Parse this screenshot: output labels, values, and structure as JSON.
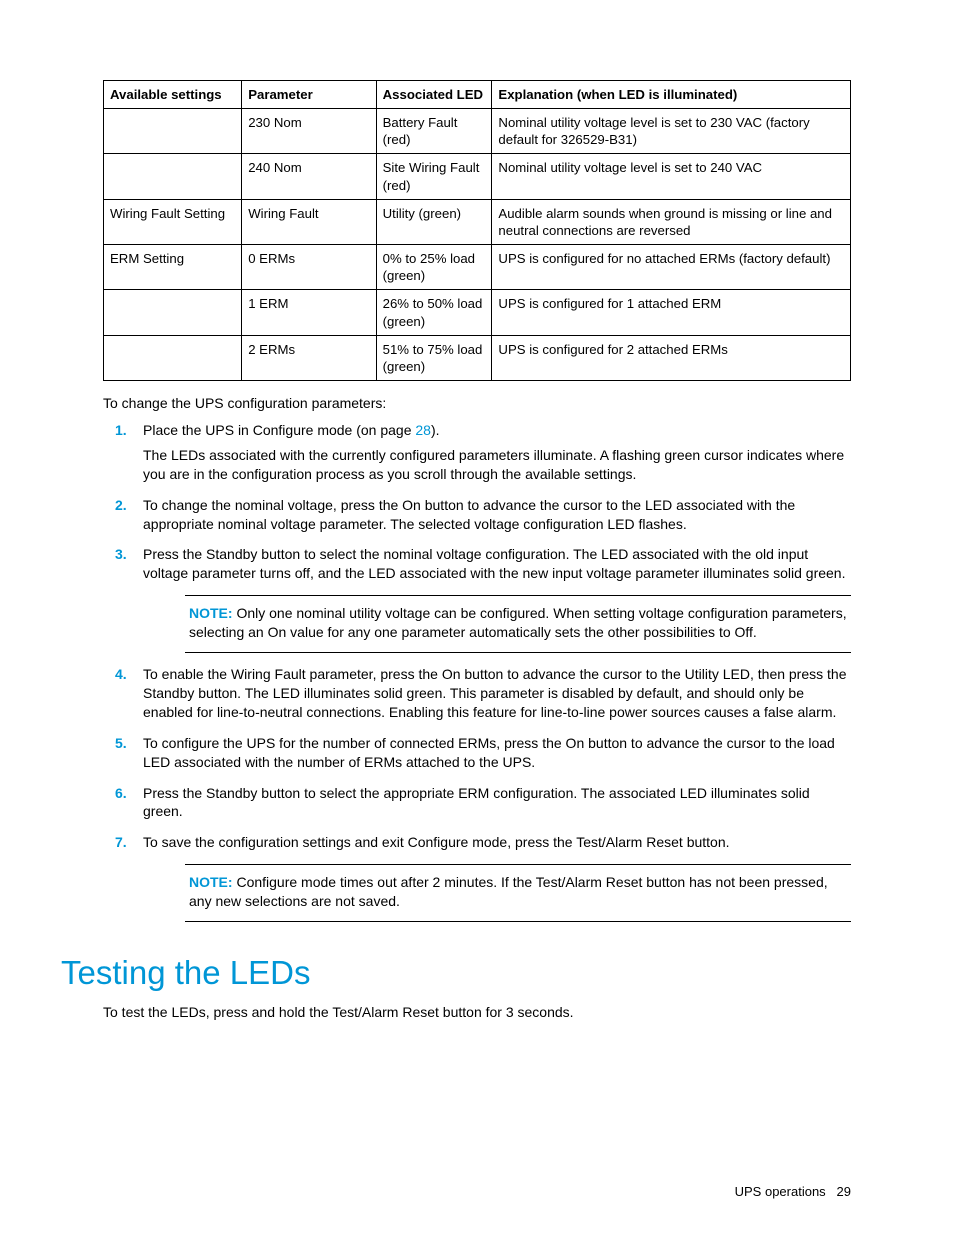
{
  "table": {
    "headers": {
      "a": "Available settings",
      "b": "Parameter",
      "c": "Associated LED",
      "d": "Explanation (when LED is illuminated)"
    },
    "rows": [
      {
        "a": "",
        "b": "230 Nom",
        "c": "Battery Fault (red)",
        "d": "Nominal utility voltage level is set to 230 VAC (factory default for 326529-B31)"
      },
      {
        "a": "",
        "b": "240 Nom",
        "c": "Site Wiring Fault (red)",
        "d": "Nominal utility voltage level is set to 240 VAC"
      },
      {
        "a": "Wiring Fault Setting",
        "b": "Wiring Fault",
        "c": "Utility (green)",
        "d": "Audible alarm sounds when ground is missing or line and neutral connections are reversed"
      },
      {
        "a": "ERM Setting",
        "b": "0 ERMs",
        "c": "0% to 25% load (green)",
        "d": "UPS is configured for no attached ERMs (factory default)"
      },
      {
        "a": "",
        "b": "1 ERM",
        "c": "26% to 50% load (green)",
        "d": "UPS is configured for 1 attached ERM"
      },
      {
        "a": "",
        "b": "2 ERMs",
        "c": "51% to 75% load (green)",
        "d": "UPS is configured for 2 attached ERMs"
      }
    ]
  },
  "intro": "To change the UPS configuration parameters:",
  "steps": {
    "s1a_pre": "Place the UPS in Configure mode (on page ",
    "s1a_link": "28",
    "s1a_post": ").",
    "s1b": "The LEDs associated with the currently configured parameters illuminate. A flashing green cursor indicates where you are in the configuration process as you scroll through the available settings.",
    "s2": "To change the nominal voltage, press the On button to advance the cursor to the LED associated with the appropriate nominal voltage parameter. The selected voltage configuration LED flashes.",
    "s3": "Press the Standby button to select the nominal voltage configuration. The LED associated with the old input voltage parameter turns off, and the LED associated with the new input voltage parameter illuminates solid green.",
    "s4": "To enable the Wiring Fault parameter, press the On button to advance the cursor to the Utility LED, then press the Standby button. The LED illuminates solid green. This parameter is disabled by default, and should only be enabled for line-to-neutral connections. Enabling this feature for line-to-line power sources causes a false alarm.",
    "s5": "To configure the UPS for the number of connected ERMs, press the On button to advance the cursor to the load LED associated with the number of ERMs attached to the UPS.",
    "s6": "Press the Standby button to select the appropriate ERM configuration. The associated LED illuminates solid green.",
    "s7": "To save the configuration settings and exit Configure mode, press the Test/Alarm Reset button."
  },
  "notes": {
    "label": "NOTE:",
    "n1": " Only one nominal utility voltage can be configured. When setting voltage configuration parameters, selecting an On value for any one parameter automatically sets the other possibilities to Off.",
    "n2": " Configure mode times out after 2 minutes. If the Test/Alarm Reset button has not been pressed, any new selections are not saved."
  },
  "section": {
    "title": "Testing the LEDs",
    "body": "To test the LEDs, press and hold the Test/Alarm Reset button for 3 seconds."
  },
  "footer": {
    "label": "UPS operations",
    "page": "29"
  }
}
